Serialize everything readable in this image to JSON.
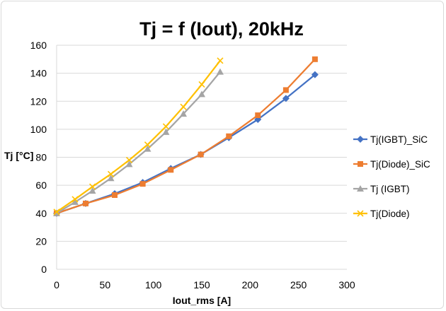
{
  "chart_data": {
    "type": "line",
    "title": "Tj = f (Iout), 20kHz",
    "xlabel": "Iout_rms [A]",
    "ylabel": "Tj [°C]",
    "xlim": [
      0,
      300
    ],
    "ylim": [
      0,
      160
    ],
    "xticks": [
      0,
      50,
      100,
      150,
      200,
      250,
      300
    ],
    "yticks": [
      0,
      20,
      40,
      60,
      80,
      100,
      120,
      140,
      160
    ],
    "grid": "horizontal",
    "legend_position": "right",
    "series": [
      {
        "name": "Tj(IGBT)_SiC",
        "color": "#4472c4",
        "marker": "diamond",
        "points": [
          [
            0,
            40
          ],
          [
            30,
            47
          ],
          [
            60,
            54
          ],
          [
            89,
            62
          ],
          [
            118,
            72
          ],
          [
            149,
            82
          ],
          [
            178,
            94
          ],
          [
            208,
            107
          ],
          [
            237,
            122
          ],
          [
            267,
            139
          ]
        ]
      },
      {
        "name": "Tj(Diode)_SiC",
        "color": "#ed7d31",
        "marker": "square",
        "points": [
          [
            0,
            40
          ],
          [
            30,
            47
          ],
          [
            60,
            53
          ],
          [
            89,
            61
          ],
          [
            118,
            71
          ],
          [
            149,
            82
          ],
          [
            178,
            95
          ],
          [
            208,
            110
          ],
          [
            237,
            128
          ],
          [
            267,
            150
          ]
        ]
      },
      {
        "name": "Tj (IGBT)",
        "color": "#a5a5a5",
        "marker": "triangle",
        "points": [
          [
            0,
            40
          ],
          [
            19,
            48
          ],
          [
            37,
            56
          ],
          [
            56,
            65
          ],
          [
            75,
            75
          ],
          [
            94,
            86
          ],
          [
            113,
            98
          ],
          [
            131,
            111
          ],
          [
            150,
            125
          ],
          [
            169,
            141
          ]
        ]
      },
      {
        "name": "Tj(Diode)",
        "color": "#ffc000",
        "marker": "x",
        "points": [
          [
            0,
            41
          ],
          [
            19,
            50
          ],
          [
            37,
            59
          ],
          [
            56,
            68
          ],
          [
            75,
            78
          ],
          [
            94,
            89
          ],
          [
            113,
            102
          ],
          [
            131,
            116
          ],
          [
            150,
            132
          ],
          [
            169,
            149
          ]
        ]
      }
    ]
  }
}
